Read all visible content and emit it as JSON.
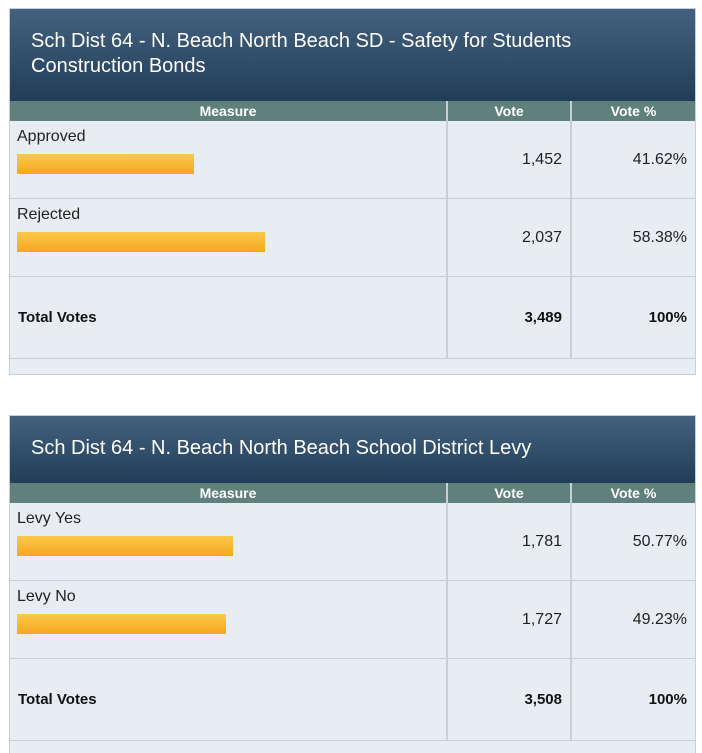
{
  "races": [
    {
      "title": "Sch Dist 64 - N. Beach North Beach SD - Safety for Students Construction Bonds",
      "headers": [
        "Measure",
        "Vote",
        "Vote %"
      ],
      "rows": [
        {
          "name": "Approved",
          "votes": "1,452",
          "pct": {
            "value": 41.62,
            "label": "41.62%"
          }
        },
        {
          "name": "Rejected",
          "votes": "2,037",
          "pct": {
            "value": 58.38,
            "label": "58.38%"
          }
        }
      ],
      "total": {
        "name": "Total Votes",
        "votes": "3,489",
        "pct": "100%"
      }
    },
    {
      "title": "Sch Dist 64 - N. Beach North Beach School District Levy",
      "headers": [
        "Measure",
        "Vote",
        "Vote %"
      ],
      "rows": [
        {
          "name": "Levy Yes",
          "votes": "1,781",
          "pct": {
            "value": 50.77,
            "label": "50.77%"
          }
        },
        {
          "name": "Levy No",
          "votes": "1,727",
          "pct": {
            "value": 49.23,
            "label": "49.23%"
          }
        }
      ],
      "total": {
        "name": "Total Votes",
        "votes": "3,508",
        "pct": "100%"
      }
    }
  ]
}
